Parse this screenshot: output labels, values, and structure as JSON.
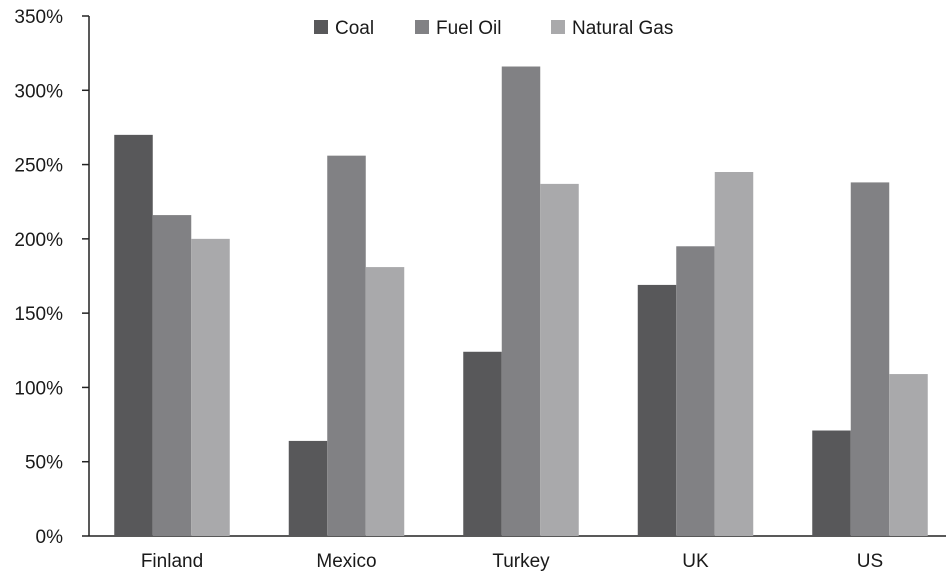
{
  "chart_data": {
    "type": "bar",
    "categories": [
      "Finland",
      "Mexico",
      "Turkey",
      "UK",
      "US"
    ],
    "series": [
      {
        "name": "Coal",
        "values": [
          270,
          64,
          124,
          169,
          71
        ],
        "color": "#58585a"
      },
      {
        "name": "Fuel Oil",
        "values": [
          216,
          256,
          316,
          195,
          238
        ],
        "color": "#818184"
      },
      {
        "name": "Natural Gas",
        "values": [
          200,
          181,
          237,
          245,
          109
        ],
        "color": "#a9a9ab"
      }
    ],
    "ylim": [
      0,
      350
    ],
    "yticks": [
      0,
      50,
      100,
      150,
      200,
      250,
      300,
      350
    ],
    "ytick_labels": [
      "0%",
      "50%",
      "100%",
      "150%",
      "200%",
      "250%",
      "300%",
      "350%"
    ],
    "value_unit": "%",
    "title": "",
    "xlabel": "",
    "ylabel": "",
    "grid": false,
    "legend_position": "top-center"
  }
}
